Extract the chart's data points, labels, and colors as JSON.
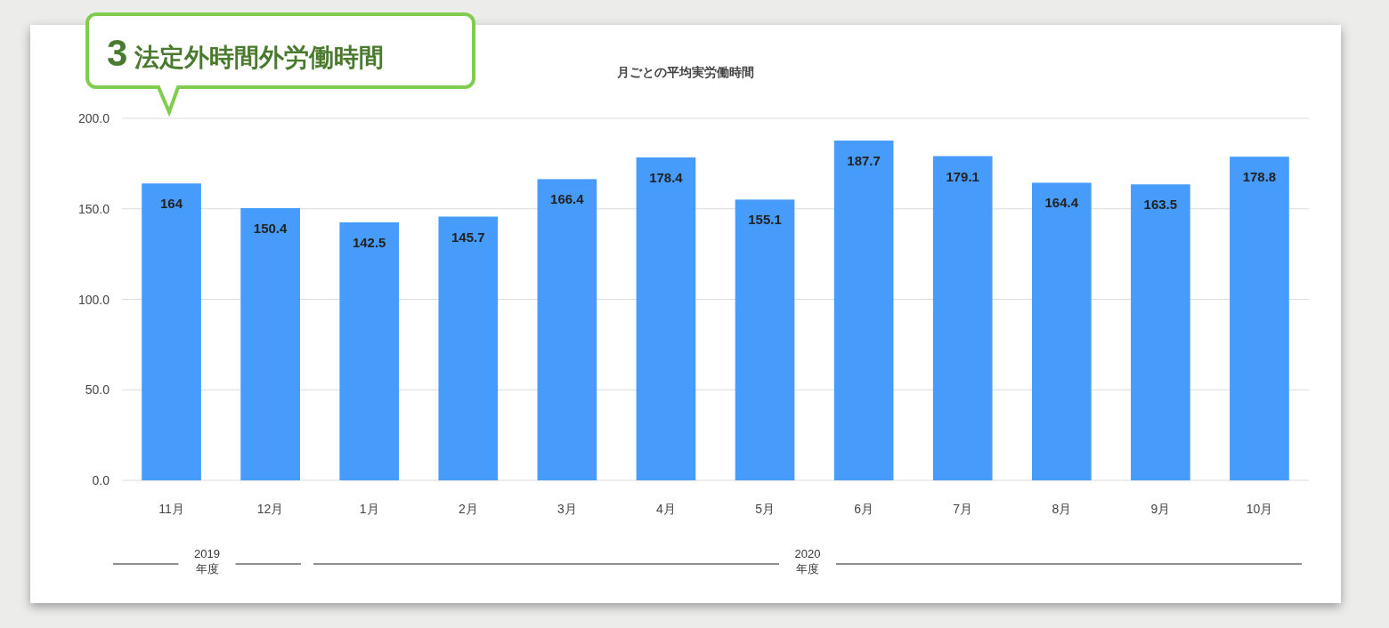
{
  "chart_data": {
    "type": "bar",
    "title": "月ごとの平均実労働時間",
    "annotations": [
      "3 法定外時間外労働時間",
      "2019\n年度",
      "2020\n年度"
    ],
    "categories": [
      "11月",
      "12月",
      "1月",
      "2月",
      "3月",
      "4月",
      "5月",
      "6月",
      "7月",
      "8月",
      "9月",
      "10月"
    ],
    "values": [
      164,
      150.4,
      142.5,
      145.7,
      166.4,
      178.4,
      155.1,
      187.7,
      179.1,
      164.4,
      163.5,
      178.8
    ],
    "color": "#469bfb",
    "ylim": [
      0,
      200
    ],
    "yticks": [
      {
        "value": 0,
        "label": "0.0"
      },
      {
        "value": 50,
        "label": "50.0"
      },
      {
        "value": 100,
        "label": "100.0"
      },
      {
        "value": 150,
        "label": "150.0"
      },
      {
        "value": 200,
        "label": "200.0"
      }
    ],
    "grid": "y",
    "data_labels": true
  }
}
